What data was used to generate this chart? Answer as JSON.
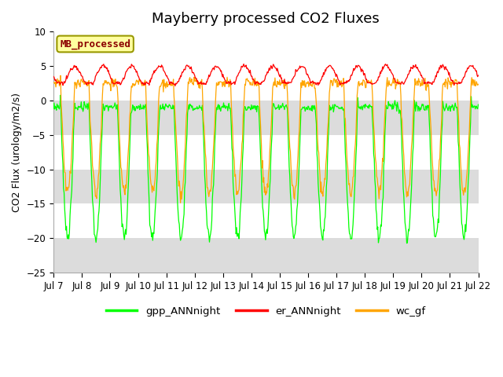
{
  "title": "Mayberry processed CO2 Fluxes",
  "ylabel": "CO2 Flux (urology/m2/s)",
  "ylim": [
    -25,
    10
  ],
  "x_tick_labels": [
    "Jul 7",
    "Jul 8",
    "Jul 9",
    "Jul 10",
    "Jul 11",
    "Jul 12",
    "Jul 13",
    "Jul 14",
    "Jul 15",
    "Jul 16",
    "Jul 17",
    "Jul 18",
    "Jul 19",
    "Jul 20",
    "Jul 21",
    "Jul 22"
  ],
  "legend_labels": [
    "gpp_ANNnight",
    "er_ANNnight",
    "wc_gf"
  ],
  "legend_colors": [
    "#00FF00",
    "#FF0000",
    "#FFA500"
  ],
  "inset_label": "MB_processed",
  "inset_text_color": "#8B0000",
  "inset_bg_color": "#FFFFA0",
  "inset_edge_color": "#999900",
  "fig_bg_color": "#FFFFFF",
  "plot_bg_color": "#FFFFFF",
  "band_color": "#DCDCDC",
  "grid_color": "#DCDCDC",
  "title_fontsize": 13,
  "axis_fontsize": 9,
  "tick_fontsize": 8.5,
  "n_days": 15,
  "n_points_per_day": 48
}
